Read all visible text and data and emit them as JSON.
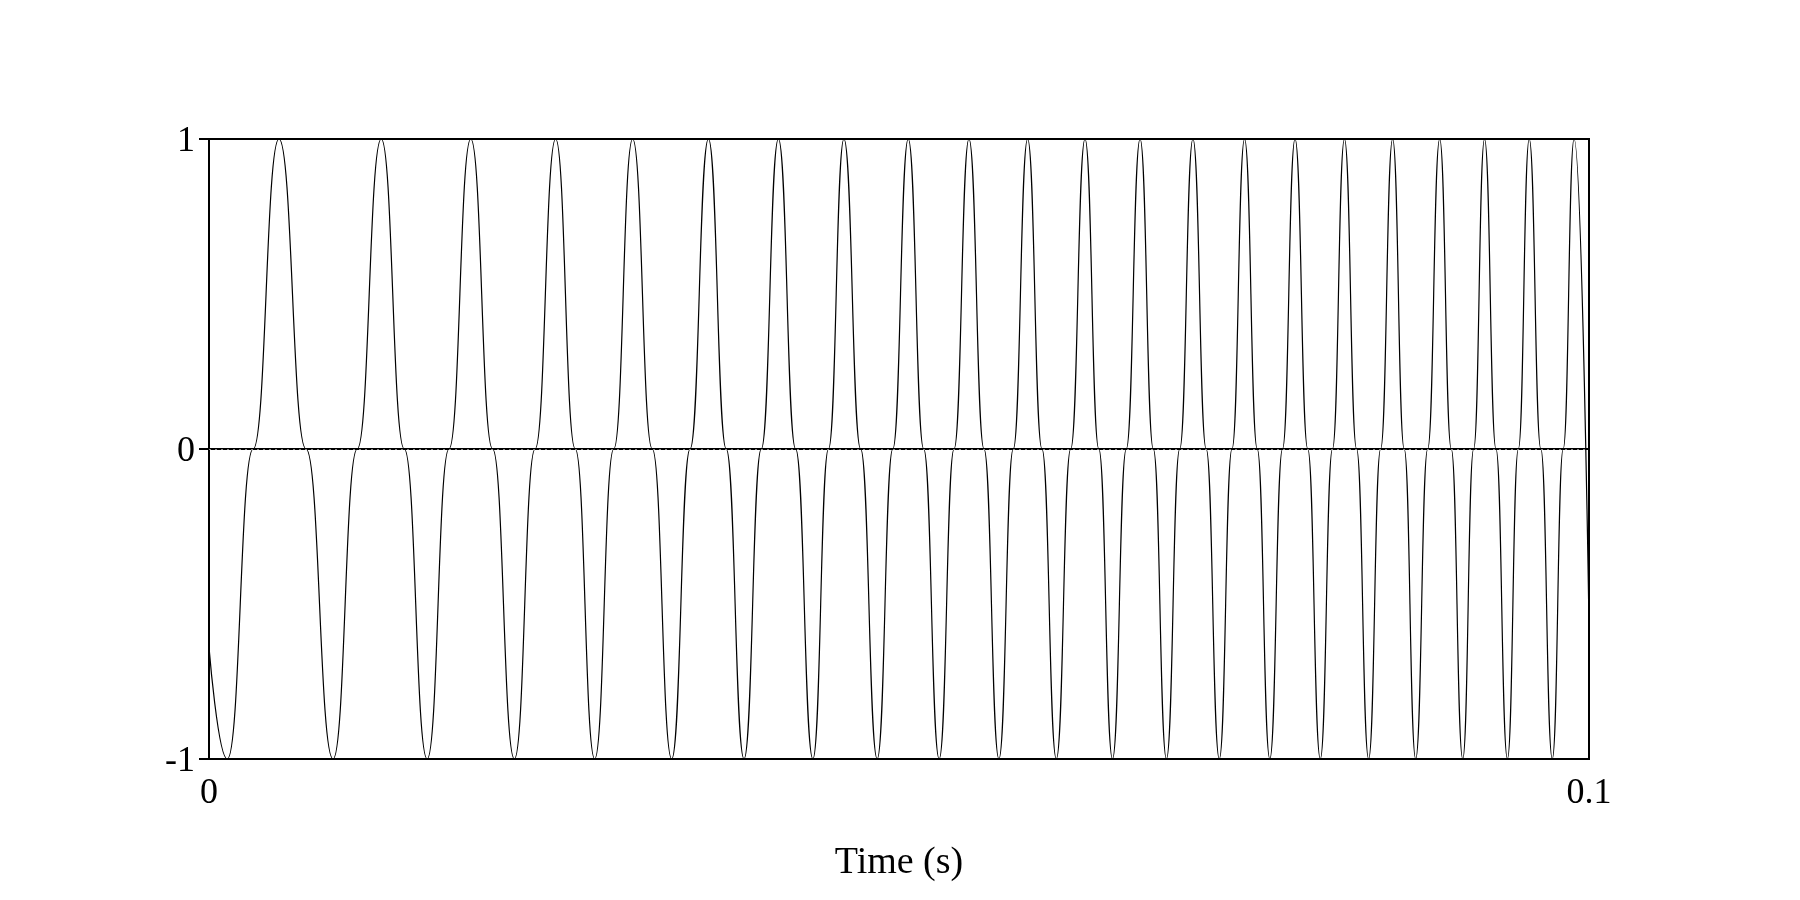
{
  "chart_data": {
    "type": "line",
    "xlabel": "Time (s)",
    "x": [
      0,
      0.00133,
      0.0032,
      0.00507,
      0.00703,
      0.00899,
      0.01074,
      0.01248,
      0.01415,
      0.01581,
      0.01739,
      0.01897,
      0.02055,
      0.02213,
      0.02363,
      0.02512,
      0.02654,
      0.02795,
      0.02933,
      0.0307,
      0.03212,
      0.03353,
      0.03486,
      0.03619,
      0.03748,
      0.03877,
      0.04002,
      0.04126,
      0.04251,
      0.04376,
      0.04489,
      0.04601,
      0.04722,
      0.04842,
      0.04955,
      0.05067,
      0.05179,
      0.05291,
      0.05399,
      0.05507,
      0.05616,
      0.05724,
      0.05828,
      0.05932,
      0.06036,
      0.0614,
      0.06244,
      0.06348,
      0.06448,
      0.06547,
      0.06647,
      0.06747,
      0.06843,
      0.06938,
      0.07034,
      0.0713,
      0.07226,
      0.07321,
      0.07413,
      0.07504,
      0.07596,
      0.07687,
      0.07779,
      0.0787,
      0.07962,
      0.08053,
      0.08141,
      0.08228,
      0.08316,
      0.08403,
      0.0849,
      0.08577,
      0.08661,
      0.08744,
      0.08831,
      0.08918,
      0.09002,
      0.09085,
      0.09164,
      0.09243,
      0.09326,
      0.09409,
      0.09488,
      0.09567,
      0.09651,
      0.09734,
      0.09813,
      0.09892,
      0.1
    ],
    "series": [
      {
        "color": "#000000",
        "values": [
          -0.64,
          -1,
          0,
          1,
          0,
          -1,
          0,
          1,
          0,
          -1,
          0,
          1,
          0,
          -1,
          0,
          1,
          0,
          -1,
          0,
          1,
          0,
          -1,
          0,
          1,
          0,
          -1,
          0,
          1,
          0,
          -1,
          0,
          1,
          0,
          -1,
          0,
          1,
          0,
          -1,
          0,
          1,
          0,
          -1,
          0,
          1,
          0,
          -1,
          0,
          1,
          0,
          -1,
          0,
          1,
          0,
          -1,
          0,
          1,
          0,
          -1,
          0,
          1,
          0,
          -1,
          0,
          1,
          0,
          -1,
          0,
          1,
          0,
          -1,
          0,
          1,
          0,
          -1,
          0,
          1,
          0,
          -1,
          0,
          1,
          0,
          -1,
          0,
          1,
          0,
          -1,
          0,
          1,
          -0.57
        ]
      }
    ],
    "xlim": [
      0,
      0.1
    ],
    "xticks": [
      0,
      0.1
    ],
    "ylim": [
      -1,
      1
    ],
    "yticks": [
      -1,
      0,
      1
    ],
    "ref_lines": [
      {
        "axis": "y",
        "value": 0,
        "color": "#888888",
        "line_style": "dotted"
      }
    ],
    "grid": false,
    "marker": "none",
    "line_style": "solid"
  }
}
